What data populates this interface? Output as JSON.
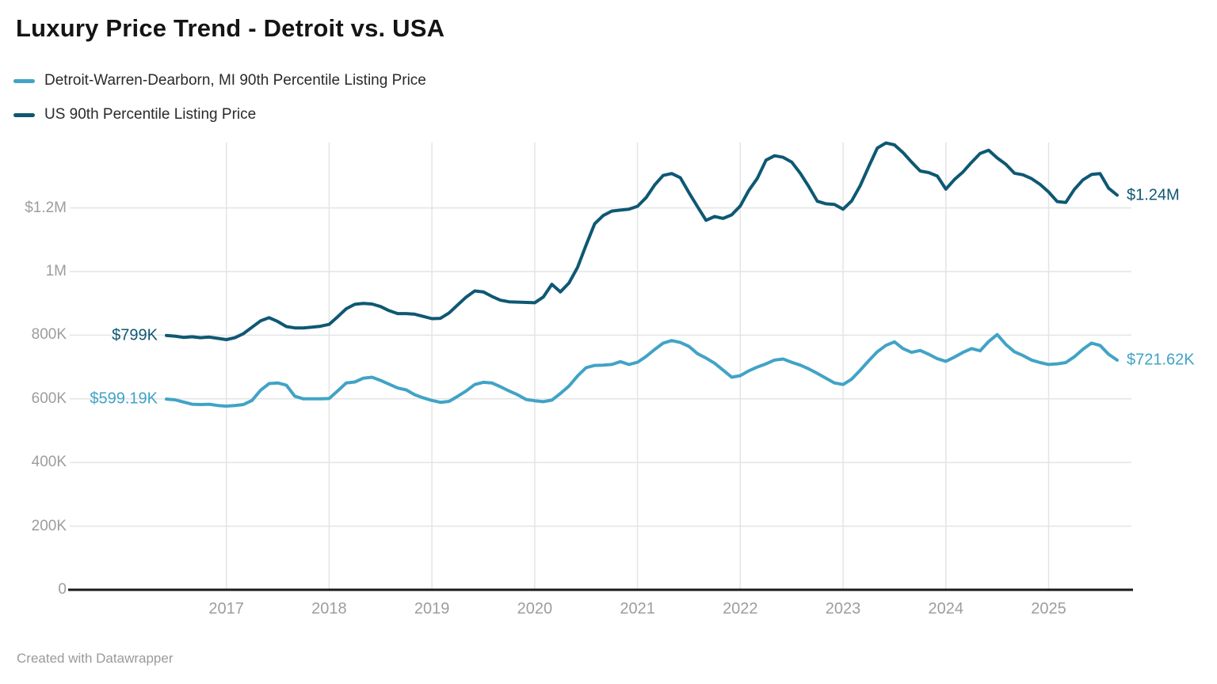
{
  "title": "Luxury Price Trend - Detroit vs. USA",
  "footer": "Created with Datawrapper",
  "chart_data": {
    "type": "line",
    "x_unit": "month",
    "x_start": "2016-06",
    "x_end": "2025-09",
    "grid": true,
    "legend_position": "top-left",
    "ylim_usd": [
      0,
      1450000
    ],
    "y_ticks": [
      {
        "label": "0",
        "value_k": 0
      },
      {
        "label": "200K",
        "value_k": 200
      },
      {
        "label": "400K",
        "value_k": 400
      },
      {
        "label": "600K",
        "value_k": 600
      },
      {
        "label": "800K",
        "value_k": 800
      },
      {
        "label": "1M",
        "value_k": 1000
      },
      {
        "label": "$1.2M",
        "value_k": 1200
      }
    ],
    "x_ticks": [
      "2017",
      "2018",
      "2019",
      "2020",
      "2021",
      "2022",
      "2023",
      "2024",
      "2025"
    ],
    "series": [
      {
        "name": "Detroit-Warren-Dearborn, MI 90th Percentile Listing Price",
        "color": "#41a3c6",
        "start_label": "$599.19K",
        "end_label": "$721.62K",
        "unit": "USD thousands",
        "values_k": [
          599.19,
          597,
          590,
          583,
          582,
          583,
          579,
          577,
          579,
          582,
          595,
          627,
          648,
          650,
          643,
          608,
          600,
          600,
          600,
          601,
          625,
          650,
          653,
          665,
          668,
          658,
          646,
          634,
          628,
          613,
          603,
          595,
          589,
          592,
          608,
          625,
          645,
          652,
          650,
          638,
          625,
          613,
          598,
          594,
          591,
          596,
          617,
          640,
          672,
          698,
          705,
          706,
          708,
          717,
          708,
          715,
          733,
          755,
          775,
          783,
          777,
          765,
          742,
          728,
          712,
          690,
          668,
          673,
          688,
          700,
          710,
          722,
          725,
          715,
          706,
          694,
          680,
          665,
          650,
          645,
          662,
          690,
          720,
          748,
          768,
          779,
          758,
          746,
          752,
          740,
          726,
          718,
          731,
          746,
          758,
          751,
          780,
          802,
          771,
          748,
          736,
          722,
          714,
          708,
          710,
          714,
          732,
          756,
          775,
          768,
          740,
          721.62
        ]
      },
      {
        "name": "US 90th Percentile Listing Price",
        "color": "#0e5873",
        "start_label": "$799K",
        "end_label": "$1.24M",
        "unit": "USD thousands",
        "values_k": [
          799,
          797,
          793,
          795,
          792,
          794,
          790,
          786,
          792,
          805,
          825,
          845,
          855,
          843,
          827,
          823,
          823,
          825,
          828,
          834,
          858,
          883,
          897,
          900,
          898,
          890,
          877,
          868,
          868,
          866,
          859,
          852,
          853,
          870,
          895,
          920,
          939,
          936,
          922,
          910,
          905,
          904,
          903,
          902,
          920,
          960,
          936,
          964,
          1013,
          1083,
          1150,
          1176,
          1190,
          1193,
          1196,
          1205,
          1232,
          1272,
          1302,
          1308,
          1295,
          1248,
          1204,
          1161,
          1173,
          1167,
          1178,
          1206,
          1255,
          1293,
          1350,
          1364,
          1359,
          1344,
          1309,
          1267,
          1221,
          1213,
          1211,
          1196,
          1222,
          1270,
          1330,
          1388,
          1404,
          1398,
          1374,
          1344,
          1316,
          1311,
          1300,
          1259,
          1289,
          1313,
          1343,
          1371,
          1381,
          1357,
          1337,
          1309,
          1304,
          1292,
          1274,
          1250,
          1220,
          1217,
          1258,
          1288,
          1305,
          1308,
          1262,
          1240
        ]
      }
    ]
  }
}
